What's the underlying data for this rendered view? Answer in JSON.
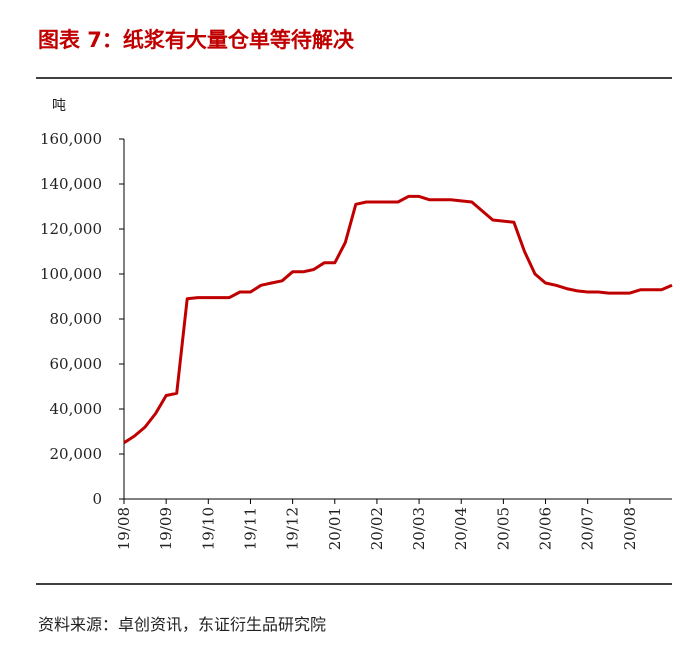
{
  "chart_data": {
    "type": "line",
    "title": "图表 7：纸浆有大量仓单等待解决",
    "y_label": "吨",
    "source": "资料来源：卓创资讯，东证衍生品研究院",
    "categories": [
      "19/08",
      null,
      null,
      null,
      "19/09",
      null,
      null,
      null,
      "19/10",
      null,
      null,
      null,
      "19/11",
      null,
      null,
      null,
      "19/12",
      null,
      null,
      null,
      "20/01",
      null,
      null,
      null,
      "20/02",
      null,
      null,
      null,
      "20/03",
      null,
      null,
      null,
      "20/04",
      null,
      null,
      null,
      "20/05",
      null,
      null,
      null,
      "20/06",
      null,
      null,
      null,
      "20/07",
      null,
      null,
      null,
      "20/08",
      null,
      null,
      null,
      null
    ],
    "series": [
      {
        "name": "仓单",
        "color": "#c00000",
        "values": [
          25000,
          28000,
          32000,
          38000,
          46000,
          47000,
          89000,
          89500,
          89500,
          89500,
          89500,
          92000,
          92000,
          95000,
          96000,
          97000,
          101000,
          101000,
          102000,
          105000,
          105000,
          114000,
          131000,
          132000,
          132000,
          132000,
          132000,
          134500,
          134500,
          133000,
          133000,
          133000,
          132500,
          132000,
          128000,
          124000,
          123500,
          123000,
          110000,
          100000,
          96000,
          95000,
          93500,
          92500,
          92000,
          92000,
          91500,
          91500,
          91500,
          93000,
          93000,
          93000,
          95000
        ]
      }
    ],
    "ylim": [
      0,
      160000
    ],
    "yticks": [
      0,
      {
        "value": 20000,
        "label": "20,000"
      },
      {
        "value": 40000,
        "label": "40,000"
      },
      {
        "value": 60000,
        "label": "60,000"
      },
      {
        "value": 80000,
        "label": "80,000"
      },
      {
        "value": 100000,
        "label": "100,000"
      },
      {
        "value": 120000,
        "label": "120,000"
      },
      {
        "value": 140000,
        "label": "140,000"
      },
      {
        "value": 160000,
        "label": "160,000"
      }
    ]
  }
}
